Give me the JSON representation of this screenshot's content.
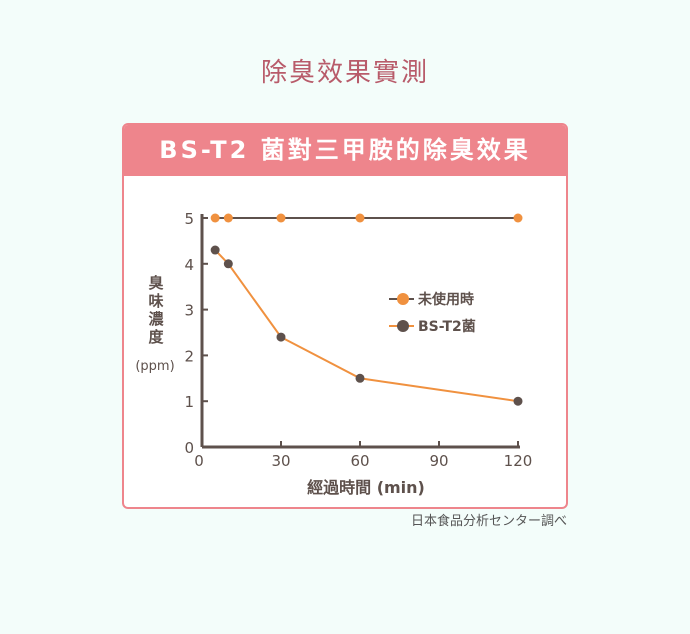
{
  "page": {
    "title": "除臭效果實測",
    "source": "日本食品分析センター調べ"
  },
  "colors": {
    "background": "#f3fdfa",
    "accent": "#ee858c",
    "title": "#b85b6a",
    "orange": "#f0913f",
    "brown": "#5e514c"
  },
  "chart_data": {
    "type": "line",
    "title": "BS-T2 菌對三甲胺的除臭效果",
    "ylabel": "臭味濃度",
    "yunit": "(ppm)",
    "xlabel": "經過時間 (min)",
    "xlim": [
      0,
      120
    ],
    "ylim": [
      0,
      5
    ],
    "xticks": [
      "0",
      "30",
      "60",
      "90",
      "120"
    ],
    "yticks": [
      "0",
      "1",
      "2",
      "3",
      "4",
      "5"
    ],
    "legend_position": "right",
    "grid": false,
    "series": [
      {
        "name": "未使用時",
        "x": [
          5,
          10,
          30,
          60,
          120
        ],
        "y": [
          5,
          5,
          5,
          5,
          5
        ],
        "line_color": "#5e514c",
        "marker_color": "#f0913f"
      },
      {
        "name": "BS-T2菌",
        "x": [
          5,
          10,
          30,
          60,
          120
        ],
        "y": [
          4.3,
          4.0,
          2.4,
          1.5,
          1.0
        ],
        "line_color": "#f0913f",
        "marker_color": "#5e514c"
      }
    ]
  }
}
